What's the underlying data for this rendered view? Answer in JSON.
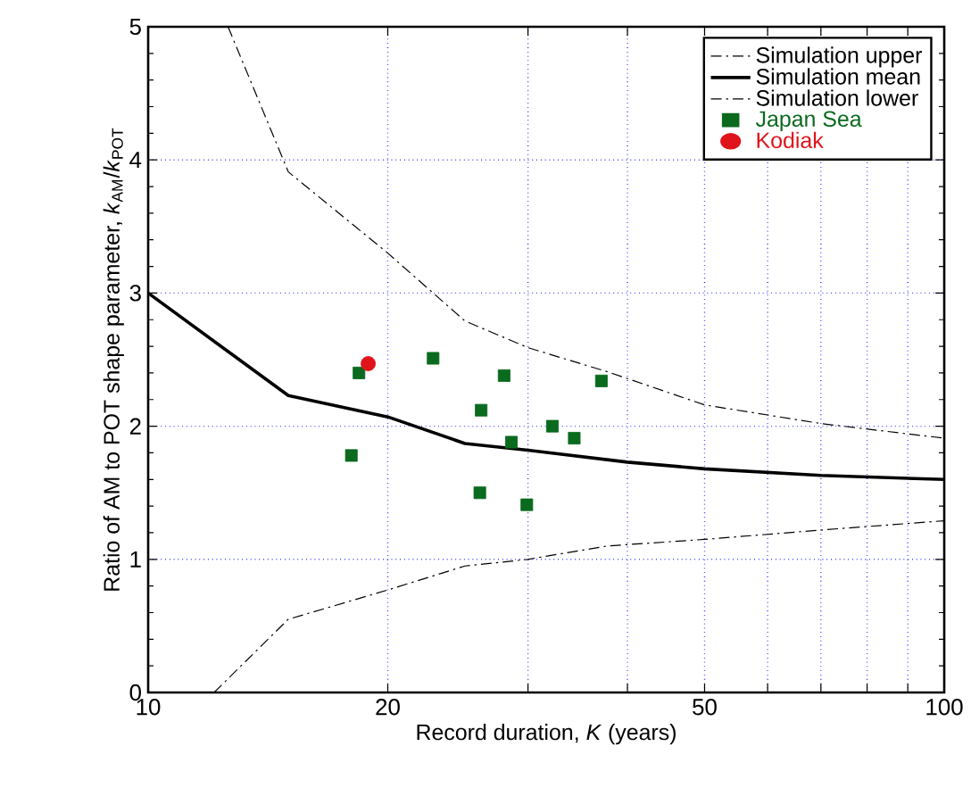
{
  "chart_data": {
    "type": "line",
    "xlabel": "Record duration,  *K* (years)",
    "ylabel": "Ratio of AM to POT shape parameter,  *k*$_{AM}$/*k*$_{POT}$",
    "log": "x",
    "grid": true,
    "legend": "top right",
    "xlim": [
      10,
      100
    ],
    "ylim": [
      0,
      5
    ],
    "xticks": [
      10,
      20,
      {
        "value": 30,
        "label": null
      },
      {
        "value": 40,
        "label": null
      },
      50,
      {
        "value": 60,
        "label": null
      },
      {
        "value": 70,
        "label": null
      },
      {
        "value": 80,
        "label": null
      },
      {
        "value": 90,
        "label": null
      },
      100
    ],
    "yticks": [
      0,
      1,
      2,
      3,
      4,
      5
    ],
    "series": [
      {
        "name": "Simulation  upper",
        "color": "#000000",
        "line_style": "dashed",
        "x": [
          12.6,
          15,
          20,
          25,
          30,
          37.7,
          50,
          70,
          100
        ],
        "values": [
          5.0,
          3.91,
          3.3,
          2.79,
          2.59,
          2.41,
          2.16,
          2.02,
          1.91
        ]
      },
      {
        "name": "Simulation  mean",
        "color": "#000000",
        "line_style": "solid",
        "x": [
          10,
          15,
          20,
          25,
          30,
          40,
          50,
          70,
          100
        ],
        "values": [
          3.0,
          2.23,
          2.07,
          1.87,
          1.82,
          1.73,
          1.68,
          1.63,
          1.6
        ]
      },
      {
        "name": "Simulation  lower",
        "color": "#000000",
        "line_style": "dashed",
        "x": [
          12.1,
          15,
          20,
          25,
          30,
          37.7,
          50,
          70,
          100
        ],
        "values": [
          0.0,
          0.55,
          0.77,
          0.95,
          1.0,
          1.1,
          1.15,
          1.22,
          1.29
        ]
      },
      {
        "name": "Japan Sea",
        "type": "scatter",
        "color": "#0a6a1e",
        "marker": "square",
        "x": [
          18.4,
          18.0,
          22.8,
          26.2,
          26.1,
          28.0,
          28.6,
          29.9,
          32.2,
          34.3,
          37.1
        ],
        "values": [
          2.4,
          1.78,
          2.51,
          2.12,
          1.5,
          2.38,
          1.88,
          1.41,
          2.0,
          1.91,
          2.34
        ]
      },
      {
        "name": "Kodiak",
        "type": "scatter",
        "color": "#e0141b",
        "marker": "circle",
        "x": [
          18.9
        ],
        "values": [
          2.47
        ]
      }
    ]
  }
}
